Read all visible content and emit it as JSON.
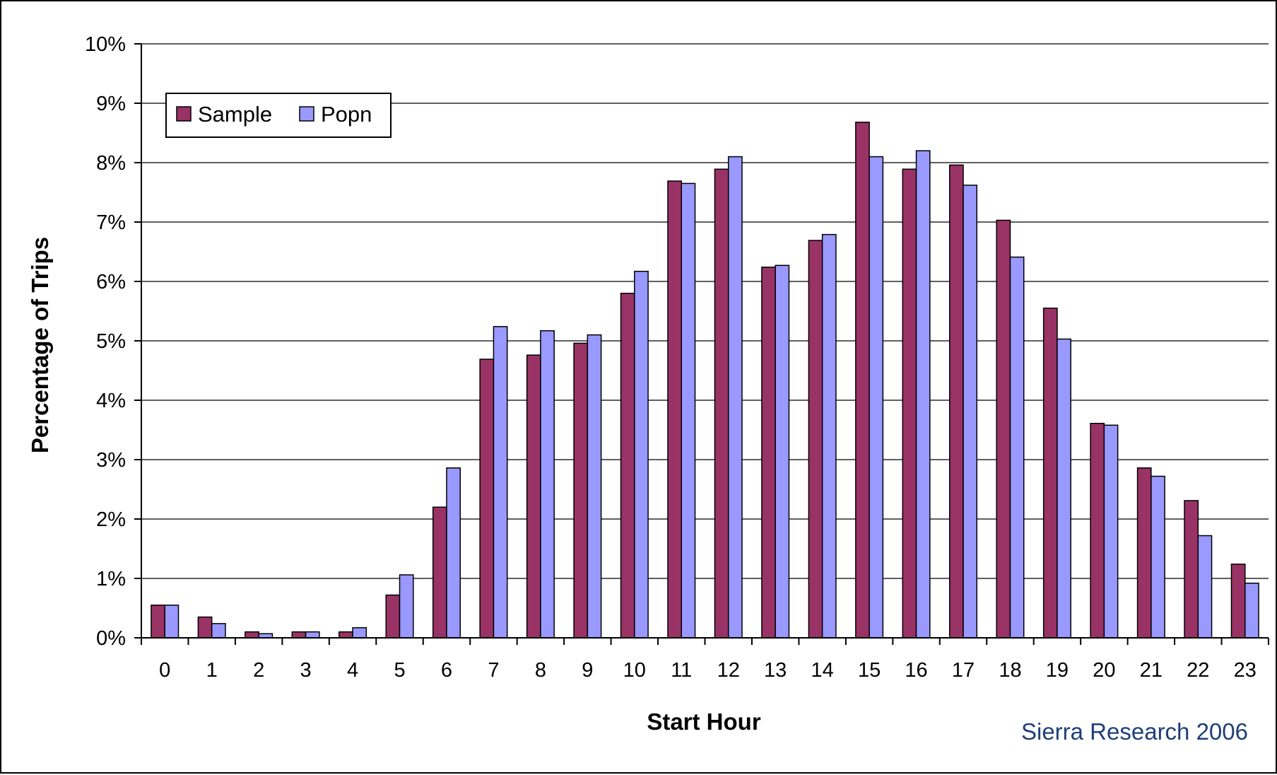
{
  "chart_data": {
    "type": "bar",
    "title": "",
    "xlabel": "Start Hour",
    "ylabel": "Percentage of Trips",
    "ylim": [
      0,
      10
    ],
    "y_tick_labels": [
      "0%",
      "1%",
      "2%",
      "3%",
      "4%",
      "5%",
      "6%",
      "7%",
      "8%",
      "9%",
      "10%"
    ],
    "categories": [
      "0",
      "1",
      "2",
      "3",
      "4",
      "5",
      "6",
      "7",
      "8",
      "9",
      "10",
      "11",
      "12",
      "13",
      "14",
      "15",
      "16",
      "17",
      "18",
      "19",
      "20",
      "21",
      "22",
      "23"
    ],
    "series": [
      {
        "name": "Sample",
        "color": "#993366",
        "values": [
          0.55,
          0.35,
          0.1,
          0.1,
          0.1,
          0.72,
          2.2,
          4.69,
          4.76,
          4.96,
          5.8,
          7.69,
          7.89,
          6.24,
          6.69,
          8.68,
          7.89,
          7.96,
          7.03,
          5.55,
          3.61,
          2.86,
          2.31,
          1.24
        ]
      },
      {
        "name": "Popn",
        "color": "#9999FF",
        "values": [
          0.55,
          0.24,
          0.07,
          0.1,
          0.17,
          1.06,
          2.86,
          5.24,
          5.17,
          5.1,
          6.17,
          7.65,
          8.1,
          6.27,
          6.79,
          8.1,
          8.2,
          7.62,
          6.41,
          5.03,
          3.58,
          2.72,
          1.72,
          0.92
        ]
      }
    ],
    "grid": true,
    "legend_position": "top-left",
    "annotation": "Sierra Research 2006",
    "annotation_color": "#1F3F7A"
  }
}
